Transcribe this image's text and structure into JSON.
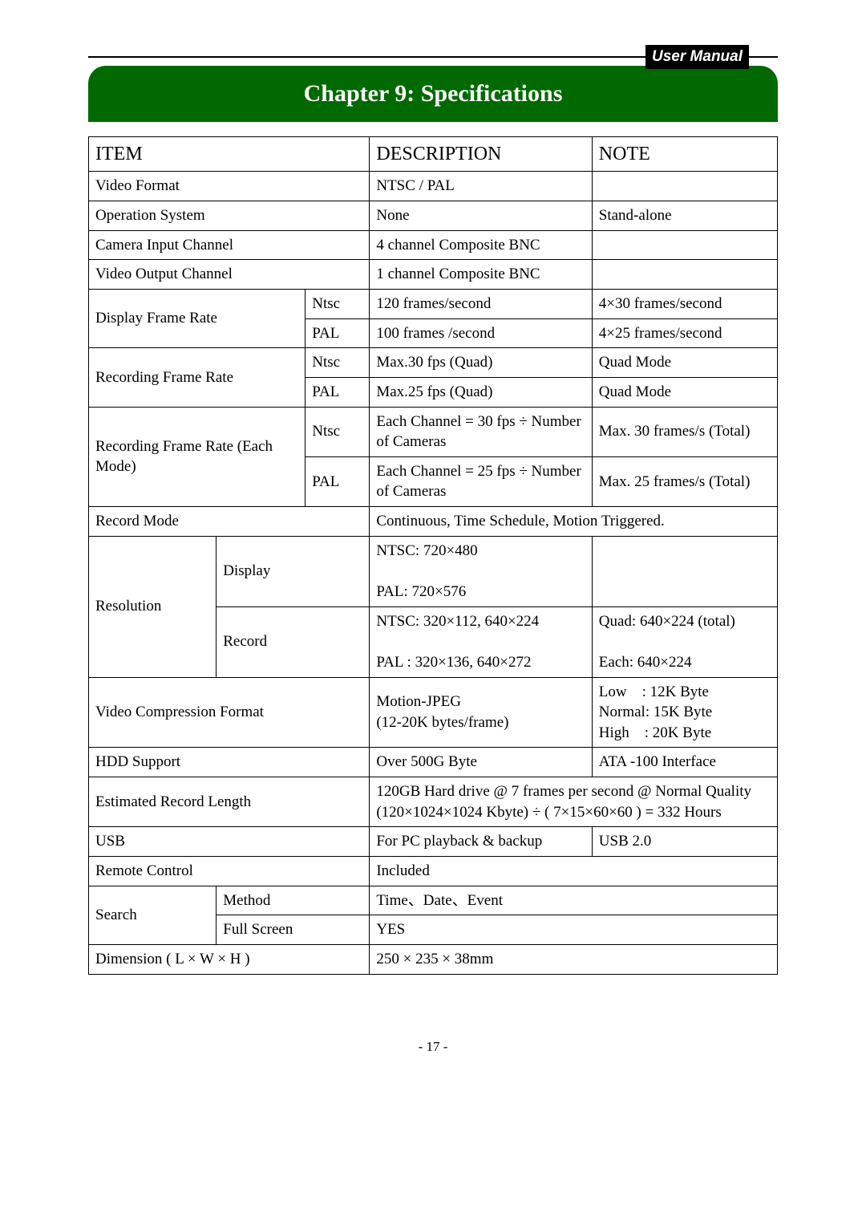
{
  "header": {
    "user_manual": "User Manual"
  },
  "chapter_title": "Chapter 9: Specifications",
  "table": {
    "headers": {
      "item": "ITEM",
      "description": "DESCRIPTION",
      "note": "NOTE"
    },
    "video_format": {
      "item": "Video Format",
      "desc": "NTSC / PAL",
      "note": ""
    },
    "op_sys": {
      "item": "Operation System",
      "desc": "None",
      "note": "Stand-alone"
    },
    "cam_in": {
      "item": "Camera Input Channel",
      "desc": "4 channel Composite BNC",
      "note": ""
    },
    "vid_out": {
      "item": "Video Output Channel",
      "desc": "1 channel Composite BNC",
      "note": ""
    },
    "dfr": {
      "item": "Display Frame Rate",
      "ntsc_lbl": "Ntsc",
      "ntsc_desc": "120 frames/second",
      "ntsc_note": "4×30 frames/second",
      "pal_lbl": "PAL",
      "pal_desc": "100 frames /second",
      "pal_note": "4×25 frames/second"
    },
    "rfr": {
      "item": "Recording Frame Rate",
      "ntsc_lbl": "Ntsc",
      "ntsc_desc": "Max.30 fps (Quad)",
      "ntsc_note": "Quad Mode",
      "pal_lbl": "PAL",
      "pal_desc": "Max.25 fps (Quad)",
      "pal_note": "Quad Mode"
    },
    "rfr_each": {
      "item": "Recording Frame Rate (Each Mode)",
      "ntsc_lbl": "Ntsc",
      "ntsc_desc": "Each Channel =\n30 fps ÷ Number of Cameras",
      "ntsc_note": "Max. 30 frames/s (Total)",
      "pal_lbl": "PAL",
      "pal_desc": "Each Channel =\n25 fps ÷ Number of Cameras",
      "pal_note": "Max. 25 frames/s (Total)"
    },
    "rec_mode": {
      "item": "Record Mode",
      "desc": "Continuous, Time Schedule, Motion Triggered."
    },
    "resolution": {
      "item": "Resolution",
      "display_lbl": "Display",
      "display_desc": "NTSC: 720×480\n\nPAL:   720×576",
      "display_note": "",
      "record_lbl": "Record",
      "record_desc": "NTSC: 320×112, 640×224\n\nPAL : 320×136, 640×272",
      "record_note": "Quad: 640×224 (total)\n\nEach: 640×224"
    },
    "vcf": {
      "item": "Video Compression Format",
      "desc": "Motion-JPEG\n(12-20K bytes/frame)",
      "note": "Low : 12K Byte\nNormal: 15K Byte\nHigh : 20K Byte"
    },
    "hdd": {
      "item": "HDD Support",
      "desc": "Over 500G Byte",
      "note": "ATA -100 Interface"
    },
    "erl": {
      "item": "Estimated Record Length",
      "desc": "120GB Hard drive @ 7 frames per second @ Normal Quality\n(120×1024×1024 Kbyte) ÷ ( 7×15×60×60 ) = 332 Hours"
    },
    "usb": {
      "item": "USB",
      "desc": "For PC playback & backup",
      "note": "USB 2.0"
    },
    "remote": {
      "item": "Remote Control",
      "desc": "Included"
    },
    "search": {
      "item": "Search",
      "method_lbl": "Method",
      "method_desc": "Time、Date、Event",
      "fs_lbl": "Full Screen",
      "fs_desc": "YES"
    },
    "dim": {
      "item": "Dimension ( L × W × H )",
      "desc": "250 × 235 × 38mm"
    }
  },
  "page_number": "- 17 -",
  "colors": {
    "banner_bg": "#006a00",
    "banner_fg": "#ffffff"
  }
}
